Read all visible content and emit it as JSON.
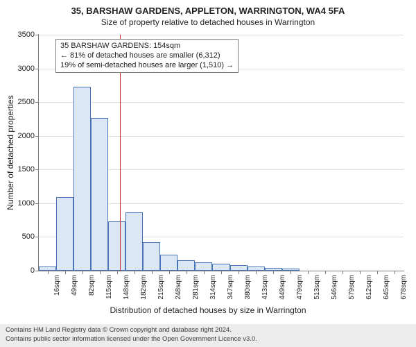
{
  "title": "35, BARSHAW GARDENS, APPLETON, WARRINGTON, WA4 5FA",
  "subtitle": "Size of property relative to detached houses in Warrington",
  "ylabel": "Number of detached properties",
  "xlabel": "Distribution of detached houses by size in Warrington",
  "histogram": {
    "type": "bar",
    "categories": [
      "16sqm",
      "49sqm",
      "82sqm",
      "115sqm",
      "148sqm",
      "182sqm",
      "215sqm",
      "248sqm",
      "281sqm",
      "314sqm",
      "347sqm",
      "380sqm",
      "413sqm",
      "449sqm",
      "479sqm",
      "513sqm",
      "546sqm",
      "579sqm",
      "612sqm",
      "645sqm",
      "678sqm"
    ],
    "values": [
      60,
      1090,
      2730,
      2260,
      730,
      870,
      420,
      240,
      150,
      120,
      100,
      80,
      60,
      40,
      30,
      0,
      0,
      0,
      0,
      0,
      0
    ],
    "ylim": [
      0,
      3500
    ],
    "ytick_step": 500,
    "bar_fill": "#dbe6f6",
    "bar_border": "#4a74b8",
    "grid_color": "#e0e0e0",
    "axis_color": "#7a7a7a",
    "background": "#ffffff",
    "tick_fontsize": 11,
    "xtick_fontsize": 10,
    "label_fontsize": 12
  },
  "reference": {
    "value_sqm": 154,
    "line_color": "#cc3232",
    "annotation_lines": [
      "35 BARSHAW GARDENS: 154sqm",
      "← 81% of detached houses are smaller (6,312)",
      "19% of semi-detached houses are larger (1,510) →"
    ],
    "annotation_box_border": "#7a7a7a",
    "annotation_box_bg": "#ffffff"
  },
  "footer": {
    "line1": "Contains HM Land Registry data © Crown copyright and database right 2024.",
    "line2": "Contains public sector information licensed under the Open Government Licence v3.0.",
    "background": "#ececec"
  }
}
